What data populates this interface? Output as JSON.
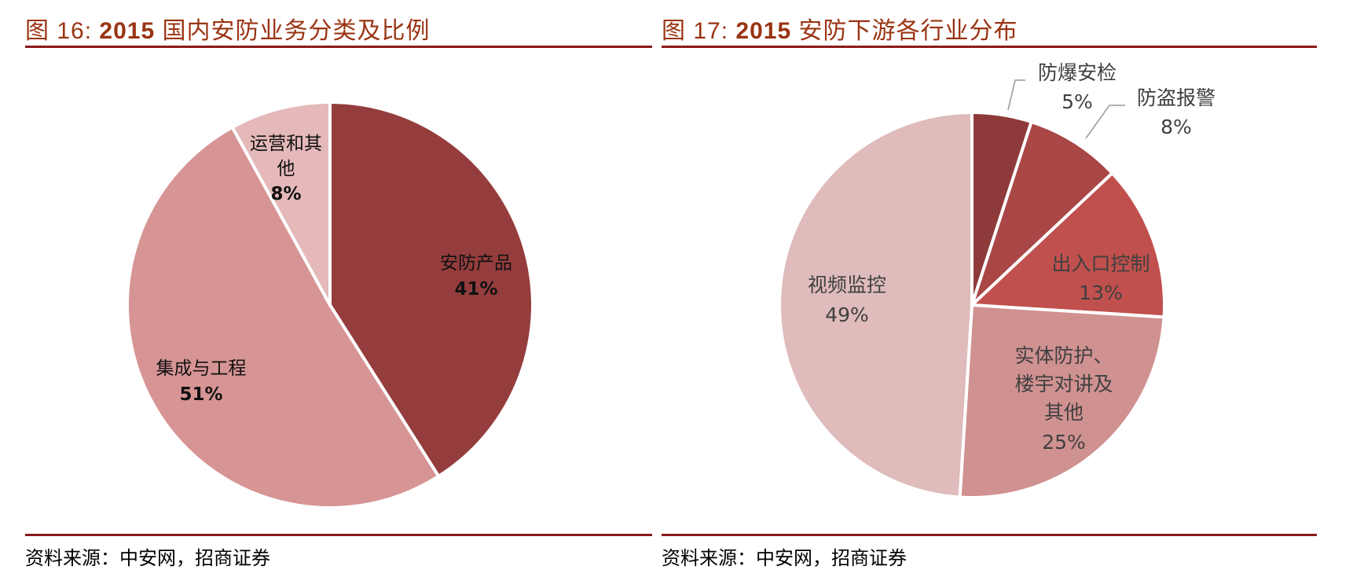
{
  "figures": [
    {
      "number_label": "图 16:",
      "year": "2015",
      "title_text": "国内安防业务分类及比例",
      "source": "资料来源：中安网，招商证券"
    },
    {
      "number_label": "图 17:",
      "year": "2015",
      "title_text": "安防下游各行业分布",
      "source": "资料来源：中安网，招商证券"
    }
  ],
  "colors": {
    "title": "#9a3412",
    "rule": "#8b1a1a",
    "leader_line": "#a6a6a6",
    "separator": "#ffffff"
  },
  "chart_data": [
    {
      "type": "pie",
      "title": "图 16: 2015 国内安防业务分类及比例",
      "start_angle": "12 o'clock, clockwise",
      "categories": [
        "安防产品",
        "集成与工程",
        "运营和其他"
      ],
      "values": [
        41,
        51,
        8
      ],
      "labels": [
        "41%",
        "51%",
        "8%"
      ],
      "colors": [
        "#953d3d",
        "#d79494",
        "#e5b9b9"
      ],
      "legend": "none (data labels inside slices)",
      "source": "资料来源：中安网，招商证券"
    },
    {
      "type": "pie",
      "title": "图 17: 2015 安防下游各行业分布",
      "start_angle": "12 o'clock, clockwise",
      "categories": [
        "防爆安检",
        "防盗报警",
        "出入口控制",
        "实体防护、楼宇对讲及其他",
        "视频监控"
      ],
      "values": [
        5,
        8,
        13,
        25,
        49
      ],
      "labels": [
        "5%",
        "8%",
        "13%",
        "25%",
        "49%"
      ],
      "colors": [
        "#8e3a3a",
        "#a94646",
        "#c0504d",
        "#d09191",
        "#dfbbbb"
      ],
      "legend": "none (data labels; 防爆安检 and 防盗报警 use leader lines)",
      "source": "资料来源：中安网，招商证券"
    }
  ],
  "pie_labels": {
    "left": [
      {
        "lines": [
          "安防产品"
        ],
        "pct": "41%"
      },
      {
        "lines": [
          "集成与工程"
        ],
        "pct": "51%"
      },
      {
        "lines": [
          "运营和其",
          "他"
        ],
        "pct": "8%"
      }
    ],
    "right": [
      {
        "lines": [
          "防爆安检"
        ],
        "pct": "5%"
      },
      {
        "lines": [
          "防盗报警"
        ],
        "pct": "8%"
      },
      {
        "lines": [
          "出入口控制"
        ],
        "pct": "13%"
      },
      {
        "lines": [
          "实体防护、",
          "楼宇对讲及",
          "其他"
        ],
        "pct": "25%"
      },
      {
        "lines": [
          "视频监控"
        ],
        "pct": "49%"
      }
    ]
  }
}
